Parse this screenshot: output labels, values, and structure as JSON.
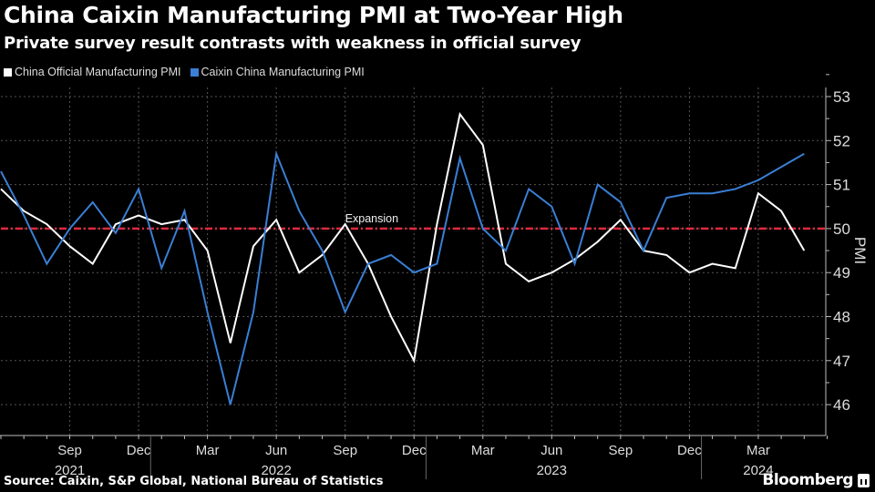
{
  "chart_data": {
    "type": "line",
    "title": "China Caixin Manufacturing PMI at Two-Year High",
    "subtitle": "Private survey result contrasts with weakness in official survey",
    "ylabel": "PMI",
    "xlabel": "",
    "ylim": [
      45.5,
      53.3
    ],
    "yticks": [
      46,
      47,
      48,
      49,
      50,
      51,
      52,
      53
    ],
    "grid": true,
    "legend_position": "top-left",
    "reference_line": {
      "value": 50,
      "label": "Expansion",
      "color": "#e0283c"
    },
    "x": [
      "Jun 2021",
      "Jul 2021",
      "Aug 2021",
      "Sep 2021",
      "Oct 2021",
      "Nov 2021",
      "Dec 2021",
      "Jan 2022",
      "Feb 2022",
      "Mar 2022",
      "Apr 2022",
      "May 2022",
      "Jun 2022",
      "Jul 2022",
      "Aug 2022",
      "Sep 2022",
      "Oct 2022",
      "Nov 2022",
      "Dec 2022",
      "Jan 2023",
      "Feb 2023",
      "Mar 2023",
      "Apr 2023",
      "May 2023",
      "Jun 2023",
      "Jul 2023",
      "Aug 2023",
      "Sep 2023",
      "Oct 2023",
      "Nov 2023",
      "Dec 2023",
      "Jan 2024",
      "Feb 2024",
      "Mar 2024",
      "Apr 2024",
      "May 2024"
    ],
    "xtick_labels": [
      {
        "month": "Sep",
        "year": "2021",
        "index": 3
      },
      {
        "month": "Dec",
        "year": "",
        "index": 6
      },
      {
        "month": "Mar",
        "year": "",
        "index": 9
      },
      {
        "month": "Jun",
        "year": "2022",
        "index": 12
      },
      {
        "month": "Sep",
        "year": "",
        "index": 15
      },
      {
        "month": "Dec",
        "year": "",
        "index": 18
      },
      {
        "month": "Mar",
        "year": "",
        "index": 21
      },
      {
        "month": "Jun",
        "year": "2023",
        "index": 24
      },
      {
        "month": "Sep",
        "year": "",
        "index": 27
      },
      {
        "month": "Dec",
        "year": "",
        "index": 30
      },
      {
        "month": "Mar",
        "year": "2024",
        "index": 33
      }
    ],
    "series": [
      {
        "name": "China Official Manufacturing PMI",
        "color": "#ffffff",
        "values": [
          50.9,
          50.4,
          50.1,
          49.6,
          49.2,
          50.1,
          50.3,
          50.1,
          50.2,
          49.5,
          47.4,
          49.6,
          50.2,
          49.0,
          49.4,
          50.1,
          49.2,
          48.0,
          47.0,
          50.1,
          52.6,
          51.9,
          49.2,
          48.8,
          49.0,
          49.3,
          49.7,
          50.2,
          49.5,
          49.4,
          49.0,
          49.2,
          49.1,
          50.8,
          50.4,
          49.5
        ]
      },
      {
        "name": "Caixin China Manufacturing PMI",
        "color": "#3a7fd5",
        "values": [
          51.3,
          50.3,
          49.2,
          50.0,
          50.6,
          49.9,
          50.9,
          49.1,
          50.4,
          48.1,
          46.0,
          48.1,
          51.7,
          50.4,
          49.5,
          48.1,
          49.2,
          49.4,
          49.0,
          49.2,
          51.6,
          50.0,
          49.5,
          50.9,
          50.5,
          49.2,
          51.0,
          50.6,
          49.5,
          50.7,
          50.8,
          50.8,
          50.9,
          51.1,
          51.4,
          51.7
        ]
      }
    ]
  },
  "footer": {
    "source": "Source: Caixin, S&P Global, National Bureau of Statistics",
    "brand": "Bloomberg"
  }
}
